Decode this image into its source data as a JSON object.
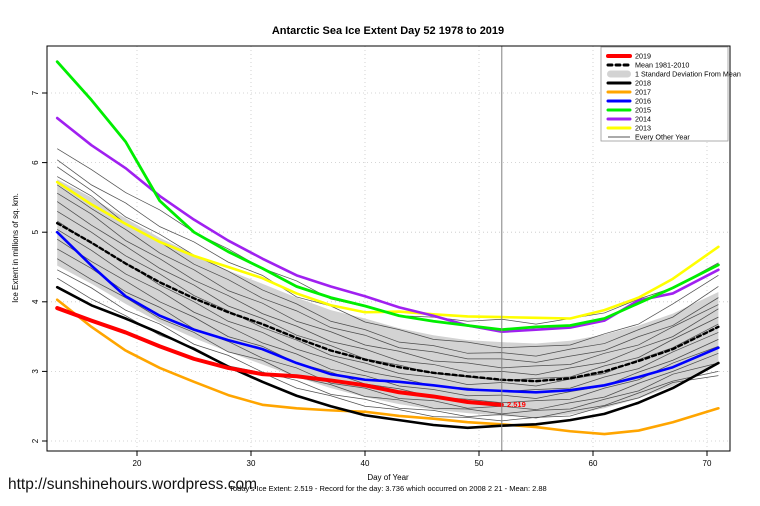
{
  "title": "Antarctic Sea Ice Extent Day 52 1978 to 2019",
  "footer": {
    "url": "http://sunshinehours.wordpress.com",
    "stats": "Today's Ice Extent: 2.519  - Record for the day: 3.736 which occurred on 2008 2 21  - Mean: 2.88"
  },
  "chart_data": {
    "type": "line",
    "title": "Antarctic Sea Ice Extent Day 52 1978 to 2019",
    "xlabel": "Day of Year",
    "ylabel": "Ice Extent in millions of sq. km.",
    "xlim": [
      12.2,
      72.0
    ],
    "ylim": [
      1.86,
      7.68
    ],
    "xticks": [
      20,
      30,
      40,
      50,
      60,
      70
    ],
    "yticks": [
      2,
      3,
      4,
      5,
      6,
      7
    ],
    "grid": true,
    "grid_color": "#c8c8c8",
    "vline_day": 52,
    "vline_color": "#808080",
    "annotation": {
      "text": "2.519",
      "day": 52.4,
      "value": 2.52,
      "color": "#ff0000"
    },
    "x": [
      13,
      16,
      19,
      22,
      25,
      28,
      31,
      34,
      37,
      40,
      43,
      46,
      49,
      52,
      55,
      58,
      61,
      64,
      67,
      71
    ],
    "band": {
      "label": "1 Standard Deviation From Mean",
      "color": "#d3d3d3",
      "top": [
        5.76,
        5.5,
        5.2,
        4.92,
        4.68,
        4.45,
        4.26,
        4.06,
        3.88,
        3.76,
        3.62,
        3.52,
        3.45,
        3.42,
        3.4,
        3.44,
        3.53,
        3.66,
        3.83,
        4.14
      ],
      "bottom": [
        4.52,
        4.26,
        3.97,
        3.7,
        3.48,
        3.28,
        3.1,
        2.92,
        2.76,
        2.63,
        2.53,
        2.45,
        2.4,
        2.36,
        2.34,
        2.38,
        2.47,
        2.61,
        2.79,
        3.14
      ]
    },
    "series": [
      {
        "name": "Mean 1981-2010",
        "color": "#000000",
        "width": 2.4,
        "dash": "4 3",
        "values": [
          5.13,
          4.85,
          4.55,
          4.28,
          4.05,
          3.85,
          3.68,
          3.48,
          3.3,
          3.17,
          3.06,
          2.98,
          2.93,
          2.88,
          2.86,
          2.9,
          3.0,
          3.15,
          3.32,
          3.64
        ]
      },
      {
        "name": "2013",
        "color": "#ffff00",
        "width": 2.6,
        "values": [
          5.72,
          5.4,
          5.12,
          4.86,
          4.66,
          4.5,
          4.34,
          4.12,
          3.95,
          3.85,
          3.86,
          3.82,
          3.79,
          3.78,
          3.77,
          3.76,
          3.88,
          4.06,
          4.33,
          4.79
        ]
      },
      {
        "name": "2014",
        "color": "#a020f0",
        "width": 2.6,
        "values": [
          6.64,
          6.25,
          5.92,
          5.52,
          5.18,
          4.88,
          4.62,
          4.38,
          4.22,
          4.08,
          3.92,
          3.8,
          3.66,
          3.57,
          3.6,
          3.63,
          3.73,
          4.02,
          4.12,
          4.46
        ]
      },
      {
        "name": "2015",
        "color": "#00ee00",
        "width": 2.8,
        "values": [
          7.45,
          6.9,
          6.3,
          5.45,
          5.0,
          4.72,
          4.48,
          4.22,
          4.06,
          3.94,
          3.8,
          3.72,
          3.66,
          3.6,
          3.64,
          3.66,
          3.76,
          3.98,
          4.2,
          4.53
        ]
      },
      {
        "name": "2016",
        "color": "#0000ff",
        "width": 2.6,
        "values": [
          5.0,
          4.52,
          4.08,
          3.8,
          3.6,
          3.45,
          3.32,
          3.12,
          2.96,
          2.88,
          2.85,
          2.8,
          2.74,
          2.72,
          2.7,
          2.73,
          2.8,
          2.92,
          3.06,
          3.34
        ]
      },
      {
        "name": "2017",
        "color": "#ffa500",
        "width": 2.6,
        "values": [
          4.03,
          3.64,
          3.3,
          3.05,
          2.85,
          2.66,
          2.52,
          2.47,
          2.44,
          2.42,
          2.36,
          2.32,
          2.27,
          2.24,
          2.2,
          2.14,
          2.1,
          2.15,
          2.27,
          2.47
        ]
      },
      {
        "name": "2018",
        "color": "#000000",
        "width": 2.6,
        "values": [
          4.21,
          3.95,
          3.76,
          3.55,
          3.32,
          3.07,
          2.85,
          2.65,
          2.5,
          2.37,
          2.3,
          2.23,
          2.19,
          2.22,
          2.24,
          2.3,
          2.39,
          2.55,
          2.76,
          3.12
        ]
      },
      {
        "name": "2019",
        "color": "#ff0000",
        "width": 4,
        "values": [
          3.91,
          3.73,
          3.56,
          3.36,
          3.18,
          3.05,
          2.96,
          2.93,
          2.87,
          2.8,
          2.7,
          2.64,
          2.56,
          2.519,
          null,
          null,
          null,
          null,
          null,
          null
        ]
      }
    ],
    "other_years": {
      "label": "Every Other Year",
      "color": "#3f3f3f",
      "width": 0.75,
      "lines": [
        [
          6.2,
          5.9,
          5.57,
          5.32,
          5.0,
          4.76,
          4.48,
          4.3,
          4.04,
          3.93,
          3.8,
          3.78,
          3.72,
          3.75,
          3.68,
          3.76,
          3.84,
          4.04,
          4.2,
          4.56
        ],
        [
          6.04,
          5.68,
          5.42,
          5.08,
          4.86,
          4.57,
          4.38,
          4.07,
          3.94,
          3.71,
          3.6,
          3.46,
          3.42,
          3.34,
          3.36,
          3.38,
          3.54,
          3.68,
          3.97,
          4.38
        ],
        [
          5.94,
          5.6,
          5.22,
          4.97,
          4.67,
          4.44,
          4.17,
          3.97,
          3.72,
          3.6,
          3.42,
          3.37,
          3.26,
          3.27,
          3.22,
          3.32,
          3.4,
          3.6,
          3.78,
          4.22
        ],
        [
          5.8,
          5.52,
          5.12,
          4.86,
          4.54,
          4.32,
          4.05,
          3.87,
          3.63,
          3.52,
          3.34,
          3.28,
          3.18,
          3.18,
          3.13,
          3.22,
          3.3,
          3.5,
          3.66,
          4.06
        ],
        [
          5.68,
          5.34,
          5.04,
          4.7,
          4.46,
          4.16,
          3.98,
          3.72,
          3.57,
          3.38,
          3.29,
          3.15,
          3.12,
          3.05,
          3.08,
          3.1,
          3.26,
          3.38,
          3.64,
          3.96
        ],
        [
          5.56,
          5.26,
          4.88,
          4.62,
          4.31,
          4.09,
          3.83,
          3.65,
          3.43,
          3.32,
          3.15,
          3.1,
          2.99,
          3.0,
          2.95,
          3.05,
          3.13,
          3.33,
          3.5,
          3.9
        ],
        [
          5.44,
          5.1,
          4.8,
          4.48,
          4.24,
          3.94,
          3.76,
          3.52,
          3.37,
          3.18,
          3.09,
          2.97,
          2.92,
          2.87,
          2.9,
          2.92,
          3.08,
          3.2,
          3.46,
          3.78
        ],
        [
          5.3,
          5.0,
          4.66,
          4.4,
          4.09,
          3.87,
          3.63,
          3.45,
          3.23,
          3.12,
          2.97,
          2.92,
          2.81,
          2.84,
          2.79,
          2.89,
          2.97,
          3.17,
          3.34,
          3.68
        ],
        [
          5.16,
          4.84,
          4.56,
          4.24,
          4.0,
          3.72,
          3.56,
          3.32,
          3.17,
          3.0,
          2.91,
          2.79,
          2.76,
          2.71,
          2.74,
          2.76,
          2.92,
          3.04,
          3.28,
          3.56
        ],
        [
          5.04,
          4.74,
          4.4,
          4.16,
          3.85,
          3.65,
          3.41,
          3.25,
          3.03,
          2.94,
          2.79,
          2.74,
          2.65,
          2.66,
          2.61,
          2.71,
          2.79,
          2.99,
          3.16,
          3.46
        ],
        [
          4.9,
          4.58,
          4.3,
          4.0,
          3.78,
          3.5,
          3.36,
          3.12,
          2.99,
          2.82,
          2.75,
          2.63,
          2.6,
          2.55,
          2.58,
          2.6,
          2.76,
          2.88,
          3.12,
          3.36
        ],
        [
          4.76,
          4.48,
          4.14,
          3.92,
          3.61,
          3.43,
          3.19,
          3.05,
          2.83,
          2.76,
          2.61,
          2.58,
          2.47,
          2.5,
          2.45,
          2.55,
          2.63,
          2.83,
          3.0,
          3.26
        ],
        [
          4.62,
          4.32,
          4.06,
          3.76,
          3.56,
          3.28,
          3.16,
          2.92,
          2.81,
          2.64,
          2.59,
          2.47,
          2.46,
          2.39,
          2.44,
          2.46,
          2.6,
          2.72,
          2.96,
          3.12
        ],
        [
          4.46,
          4.2,
          3.88,
          3.68,
          3.39,
          3.23,
          2.99,
          2.87,
          2.67,
          2.6,
          2.47,
          2.44,
          2.35,
          2.38,
          2.33,
          2.43,
          2.51,
          2.69,
          2.86,
          3.0
        ],
        [
          4.34,
          4.04,
          3.8,
          3.52,
          3.34,
          3.08,
          2.98,
          2.76,
          2.65,
          2.5,
          2.45,
          2.35,
          2.34,
          2.29,
          2.34,
          2.36,
          2.5,
          2.62,
          2.84,
          2.94
        ]
      ]
    },
    "legend": {
      "position": "top-right",
      "items": [
        {
          "label": "2019",
          "swatch": "line",
          "color": "#ff0000",
          "width": 4
        },
        {
          "label": "Mean 1981-2010",
          "swatch": "dash",
          "color": "#000000",
          "width": 3
        },
        {
          "label": "1 Standard Deviation From Mean",
          "swatch": "band",
          "color": "#d3d3d3",
          "width": 7
        },
        {
          "label": "2018",
          "swatch": "line",
          "color": "#000000",
          "width": 3
        },
        {
          "label": "2017",
          "swatch": "line",
          "color": "#ffa500",
          "width": 3
        },
        {
          "label": "2016",
          "swatch": "line",
          "color": "#0000ff",
          "width": 3
        },
        {
          "label": "2015",
          "swatch": "line",
          "color": "#00ee00",
          "width": 3
        },
        {
          "label": "2014",
          "swatch": "line",
          "color": "#a020f0",
          "width": 3
        },
        {
          "label": "2013",
          "swatch": "line",
          "color": "#ffff00",
          "width": 3
        },
        {
          "label": "Every Other Year",
          "swatch": "thin",
          "color": "#555555",
          "width": 1
        }
      ]
    }
  }
}
